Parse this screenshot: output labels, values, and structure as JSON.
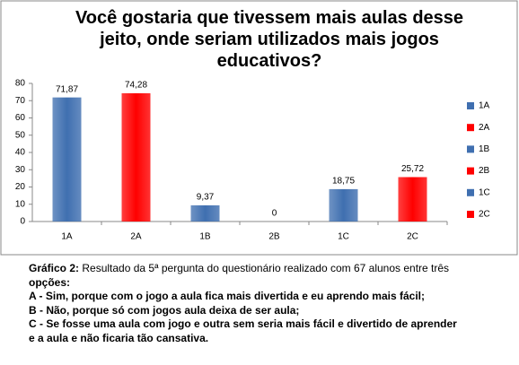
{
  "chart_data": {
    "type": "bar",
    "title": "Você gostaria que tivessem mais aulas desse jeito, onde seriam utilizados mais jogos educativos?",
    "categories": [
      "1A",
      "2A",
      "1B",
      "2B",
      "1C",
      "2C"
    ],
    "values": [
      71.87,
      74.28,
      9.37,
      0,
      18.75,
      25.72
    ],
    "value_labels": [
      "71,87",
      "74,28",
      "9,37",
      "0",
      "18,75",
      "25,72"
    ],
    "colors": [
      "#3f6fb0",
      "#ff0000",
      "#3f6fb0",
      "#ff0000",
      "#3f6fb0",
      "#ff0000"
    ],
    "ylim": [
      0,
      80
    ],
    "yticks": [
      0,
      10,
      20,
      30,
      40,
      50,
      60,
      70,
      80
    ],
    "grid": false,
    "legend": "right"
  },
  "caption": {
    "label": "Gráfico 2:",
    "lines": [
      " Resultado da 5ª pergunta do questionário realizado com 67 alunos entre três",
      "opções:",
      "A - Sim, porque com o jogo a aula fica mais divertida e eu aprendo mais fácil;",
      "B - Não, porque só com jogos aula deixa de ser aula;",
      "C - Se fosse uma aula com jogo e outra sem seria mais fácil e divertido de aprender",
      "e a aula e não ficaria tão cansativa."
    ]
  }
}
